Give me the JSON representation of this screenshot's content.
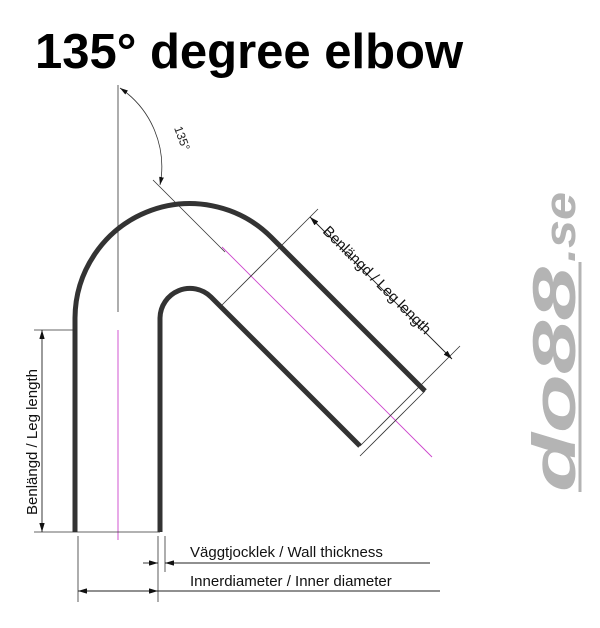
{
  "title": "135° degree elbow",
  "angle_label": "135°",
  "leg_length_label": "Benlängd / Leg length",
  "wall_thickness_label": "Väggtjocklek / Wall thickness",
  "inner_diameter_label": "Innerdiameter / Inner diameter",
  "logo": {
    "text_main": "do88",
    "text_suffix": ".se",
    "color": "#b4b4b4"
  },
  "colors": {
    "tube": "#333333",
    "centerline": "#cc44cc",
    "dimension": "#222222"
  }
}
